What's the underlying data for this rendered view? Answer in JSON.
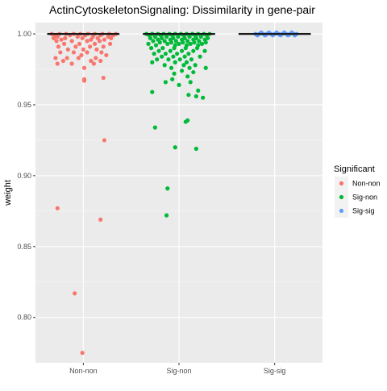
{
  "chart_data": {
    "type": "scatter",
    "subtype": "boxplot with jittered points",
    "title": "ActinCytoskeletonSignaling: Dissimilarity in gene-pair",
    "xlabel": "",
    "ylabel": "weight",
    "categories": [
      "Non-non",
      "Sig-non",
      "Sig-sig"
    ],
    "ylim": [
      0.768,
      1.008
    ],
    "yticks": [
      0.8,
      0.85,
      0.9,
      0.95,
      1.0
    ],
    "ytick_labels": [
      "0.80",
      "0.85",
      "0.90",
      "0.95",
      "1.00"
    ],
    "grid": true,
    "legend": {
      "title": "Significant",
      "placement": "right",
      "entries": [
        "Non-non",
        "Sig-non",
        "Sig-sig"
      ]
    },
    "colors": {
      "Non-non": "#F8766D",
      "Sig-non": "#00BA38",
      "Sig-sig": "#619CFF",
      "panel_bg": "#EBEBEB",
      "grid": "#FFFFFF",
      "box_line": "#1a1a1a"
    },
    "boxes": [
      {
        "category": "Non-non",
        "median": 1.0,
        "q1": 1.0,
        "q3": 1.0
      },
      {
        "category": "Sig-non",
        "median": 1.0,
        "q1": 1.0,
        "q3": 1.0
      },
      {
        "category": "Sig-sig",
        "median": 1.0,
        "q1": 1.0,
        "q3": 1.0
      }
    ],
    "series": [
      {
        "name": "Non-non",
        "category": "Non-non",
        "points": [
          {
            "x": -0.33,
            "y": 1.0
          },
          {
            "x": -0.25,
            "y": 1.0
          },
          {
            "x": -0.18,
            "y": 1.0
          },
          {
            "x": -0.1,
            "y": 1.0
          },
          {
            "x": -0.03,
            "y": 1.0
          },
          {
            "x": 0.05,
            "y": 1.0
          },
          {
            "x": 0.12,
            "y": 1.0
          },
          {
            "x": 0.2,
            "y": 1.0
          },
          {
            "x": 0.27,
            "y": 1.0
          },
          {
            "x": 0.34,
            "y": 1.0
          },
          {
            "x": -0.3,
            "y": 0.999
          },
          {
            "x": -0.14,
            "y": 0.999
          },
          {
            "x": 0.02,
            "y": 0.999
          },
          {
            "x": 0.18,
            "y": 0.999
          },
          {
            "x": 0.31,
            "y": 0.999
          },
          {
            "x": -0.27,
            "y": 0.998
          },
          {
            "x": -0.06,
            "y": 0.998
          },
          {
            "x": 0.1,
            "y": 0.998
          },
          {
            "x": 0.26,
            "y": 0.998
          },
          {
            "x": -0.31,
            "y": 0.997
          },
          {
            "x": -0.19,
            "y": 0.997
          },
          {
            "x": -0.01,
            "y": 0.997
          },
          {
            "x": 0.15,
            "y": 0.997
          },
          {
            "x": 0.29,
            "y": 0.997
          },
          {
            "x": -0.23,
            "y": 0.996
          },
          {
            "x": 0.08,
            "y": 0.996
          },
          {
            "x": 0.22,
            "y": 0.996
          },
          {
            "x": -0.28,
            "y": 0.995
          },
          {
            "x": -0.12,
            "y": 0.995
          },
          {
            "x": 0.04,
            "y": 0.995
          },
          {
            "x": 0.17,
            "y": 0.995
          },
          {
            "x": -0.2,
            "y": 0.993
          },
          {
            "x": -0.04,
            "y": 0.993
          },
          {
            "x": 0.12,
            "y": 0.993
          },
          {
            "x": 0.28,
            "y": 0.993
          },
          {
            "x": -0.26,
            "y": 0.991
          },
          {
            "x": -0.08,
            "y": 0.991
          },
          {
            "x": 0.07,
            "y": 0.991
          },
          {
            "x": 0.21,
            "y": 0.991
          },
          {
            "x": -0.16,
            "y": 0.989
          },
          {
            "x": 0.0,
            "y": 0.989
          },
          {
            "x": 0.14,
            "y": 0.989
          },
          {
            "x": -0.24,
            "y": 0.987
          },
          {
            "x": -0.1,
            "y": 0.987
          },
          {
            "x": 0.04,
            "y": 0.987
          },
          {
            "x": 0.19,
            "y": 0.987
          },
          {
            "x": -0.02,
            "y": 0.985
          },
          {
            "x": 0.24,
            "y": 0.985
          },
          {
            "x": -0.29,
            "y": 0.983
          },
          {
            "x": -0.17,
            "y": 0.983
          },
          {
            "x": -0.05,
            "y": 0.983
          },
          {
            "x": 0.13,
            "y": 0.983
          },
          {
            "x": -0.21,
            "y": 0.981
          },
          {
            "x": 0.18,
            "y": 0.981
          },
          {
            "x": 0.08,
            "y": 0.981
          },
          {
            "x": -0.27,
            "y": 0.979
          },
          {
            "x": -0.12,
            "y": 0.979
          },
          {
            "x": 0.11,
            "y": 0.979
          },
          {
            "x": 0.01,
            "y": 0.976
          },
          {
            "x": 0.21,
            "y": 0.969
          },
          {
            "x": 0.01,
            "y": 0.968
          },
          {
            "x": 0.01,
            "y": 0.967
          },
          {
            "x": 0.22,
            "y": 0.925
          },
          {
            "x": -0.27,
            "y": 0.877
          },
          {
            "x": 0.18,
            "y": 0.869
          },
          {
            "x": -0.09,
            "y": 0.817
          },
          {
            "x": -0.01,
            "y": 0.775
          }
        ]
      },
      {
        "name": "Sig-non",
        "category": "Sig-non",
        "points": [
          {
            "x": -0.34,
            "y": 1.0
          },
          {
            "x": -0.28,
            "y": 1.0
          },
          {
            "x": -0.22,
            "y": 1.0
          },
          {
            "x": -0.16,
            "y": 1.0
          },
          {
            "x": -0.1,
            "y": 1.0
          },
          {
            "x": -0.04,
            "y": 1.0
          },
          {
            "x": 0.02,
            "y": 1.0
          },
          {
            "x": 0.08,
            "y": 1.0
          },
          {
            "x": 0.14,
            "y": 1.0
          },
          {
            "x": 0.2,
            "y": 1.0
          },
          {
            "x": 0.26,
            "y": 1.0
          },
          {
            "x": 0.32,
            "y": 1.0
          },
          {
            "x": -0.31,
            "y": 0.999
          },
          {
            "x": -0.19,
            "y": 0.999
          },
          {
            "x": -0.07,
            "y": 0.999
          },
          {
            "x": 0.05,
            "y": 0.999
          },
          {
            "x": 0.17,
            "y": 0.999
          },
          {
            "x": 0.29,
            "y": 0.999
          },
          {
            "x": -0.25,
            "y": 0.998
          },
          {
            "x": -0.13,
            "y": 0.998
          },
          {
            "x": -0.01,
            "y": 0.998
          },
          {
            "x": 0.11,
            "y": 0.998
          },
          {
            "x": 0.23,
            "y": 0.998
          },
          {
            "x": -0.3,
            "y": 0.997
          },
          {
            "x": -0.18,
            "y": 0.997
          },
          {
            "x": -0.06,
            "y": 0.997
          },
          {
            "x": 0.06,
            "y": 0.997
          },
          {
            "x": 0.18,
            "y": 0.997
          },
          {
            "x": 0.3,
            "y": 0.997
          },
          {
            "x": -0.22,
            "y": 0.996
          },
          {
            "x": -0.09,
            "y": 0.996
          },
          {
            "x": 0.03,
            "y": 0.996
          },
          {
            "x": 0.15,
            "y": 0.996
          },
          {
            "x": 0.27,
            "y": 0.996
          },
          {
            "x": -0.27,
            "y": 0.995
          },
          {
            "x": -0.15,
            "y": 0.995
          },
          {
            "x": -0.03,
            "y": 0.995
          },
          {
            "x": 0.09,
            "y": 0.995
          },
          {
            "x": 0.21,
            "y": 0.995
          },
          {
            "x": -0.2,
            "y": 0.994
          },
          {
            "x": -0.08,
            "y": 0.994
          },
          {
            "x": 0.04,
            "y": 0.994
          },
          {
            "x": 0.16,
            "y": 0.994
          },
          {
            "x": 0.28,
            "y": 0.994
          },
          {
            "x": -0.32,
            "y": 0.993
          },
          {
            "x": -0.12,
            "y": 0.993
          },
          {
            "x": 0.0,
            "y": 0.993
          },
          {
            "x": 0.12,
            "y": 0.993
          },
          {
            "x": 0.24,
            "y": 0.993
          },
          {
            "x": -0.24,
            "y": 0.992
          },
          {
            "x": -0.04,
            "y": 0.992
          },
          {
            "x": 0.08,
            "y": 0.992
          },
          {
            "x": 0.2,
            "y": 0.992
          },
          {
            "x": -0.29,
            "y": 0.99
          },
          {
            "x": -0.17,
            "y": 0.99
          },
          {
            "x": -0.05,
            "y": 0.99
          },
          {
            "x": 0.07,
            "y": 0.99
          },
          {
            "x": 0.19,
            "y": 0.99
          },
          {
            "x": -0.21,
            "y": 0.988
          },
          {
            "x": -0.09,
            "y": 0.988
          },
          {
            "x": 0.03,
            "y": 0.988
          },
          {
            "x": 0.15,
            "y": 0.988
          },
          {
            "x": 0.27,
            "y": 0.988
          },
          {
            "x": -0.26,
            "y": 0.986
          },
          {
            "x": -0.14,
            "y": 0.986
          },
          {
            "x": -0.02,
            "y": 0.986
          },
          {
            "x": 0.1,
            "y": 0.986
          },
          {
            "x": -0.18,
            "y": 0.984
          },
          {
            "x": -0.06,
            "y": 0.984
          },
          {
            "x": 0.06,
            "y": 0.984
          },
          {
            "x": 0.22,
            "y": 0.984
          },
          {
            "x": -0.23,
            "y": 0.982
          },
          {
            "x": -0.11,
            "y": 0.982
          },
          {
            "x": 0.01,
            "y": 0.982
          },
          {
            "x": 0.13,
            "y": 0.982
          },
          {
            "x": -0.28,
            "y": 0.98
          },
          {
            "x": -0.04,
            "y": 0.98
          },
          {
            "x": 0.08,
            "y": 0.98
          },
          {
            "x": -0.15,
            "y": 0.978
          },
          {
            "x": 0.05,
            "y": 0.978
          },
          {
            "x": 0.17,
            "y": 0.978
          },
          {
            "x": -0.08,
            "y": 0.976
          },
          {
            "x": 0.11,
            "y": 0.976
          },
          {
            "x": 0.28,
            "y": 0.976
          },
          {
            "x": 0.03,
            "y": 0.974
          },
          {
            "x": 0.15,
            "y": 0.973
          },
          {
            "x": -0.05,
            "y": 0.972
          },
          {
            "x": 0.09,
            "y": 0.97
          },
          {
            "x": -0.07,
            "y": 0.968
          },
          {
            "x": 0.12,
            "y": 0.966
          },
          {
            "x": -0.14,
            "y": 0.966
          },
          {
            "x": 0.0,
            "y": 0.964
          },
          {
            "x": 0.2,
            "y": 0.96
          },
          {
            "x": -0.28,
            "y": 0.959
          },
          {
            "x": 0.1,
            "y": 0.957
          },
          {
            "x": 0.18,
            "y": 0.956
          },
          {
            "x": 0.25,
            "y": 0.955
          },
          {
            "x": 0.09,
            "y": 0.939
          },
          {
            "x": 0.07,
            "y": 0.938
          },
          {
            "x": -0.25,
            "y": 0.934
          },
          {
            "x": -0.04,
            "y": 0.92
          },
          {
            "x": 0.18,
            "y": 0.919
          },
          {
            "x": -0.12,
            "y": 0.891
          },
          {
            "x": -0.13,
            "y": 0.872
          }
        ]
      },
      {
        "name": "Sig-sig",
        "category": "Sig-sig",
        "points": [
          {
            "x": -0.2,
            "y": 1.0
          },
          {
            "x": -0.16,
            "y": 1.0
          },
          {
            "x": -0.12,
            "y": 1.0
          },
          {
            "x": -0.08,
            "y": 1.0
          },
          {
            "x": -0.04,
            "y": 1.0
          },
          {
            "x": 0.0,
            "y": 1.0
          },
          {
            "x": 0.04,
            "y": 1.0
          },
          {
            "x": 0.08,
            "y": 1.0
          },
          {
            "x": 0.12,
            "y": 1.0
          },
          {
            "x": 0.16,
            "y": 1.0
          },
          {
            "x": 0.2,
            "y": 1.0
          },
          {
            "x": 0.23,
            "y": 1.0
          },
          {
            "x": -0.18,
            "y": 0.999
          },
          {
            "x": -0.1,
            "y": 0.999
          },
          {
            "x": -0.02,
            "y": 0.999
          },
          {
            "x": 0.06,
            "y": 0.999
          },
          {
            "x": 0.14,
            "y": 0.999
          },
          {
            "x": 0.21,
            "y": 0.999
          },
          {
            "x": -0.14,
            "y": 1.001
          },
          {
            "x": -0.06,
            "y": 1.001
          },
          {
            "x": 0.02,
            "y": 1.001
          },
          {
            "x": 0.1,
            "y": 1.001
          },
          {
            "x": 0.18,
            "y": 1.001
          }
        ]
      }
    ]
  }
}
